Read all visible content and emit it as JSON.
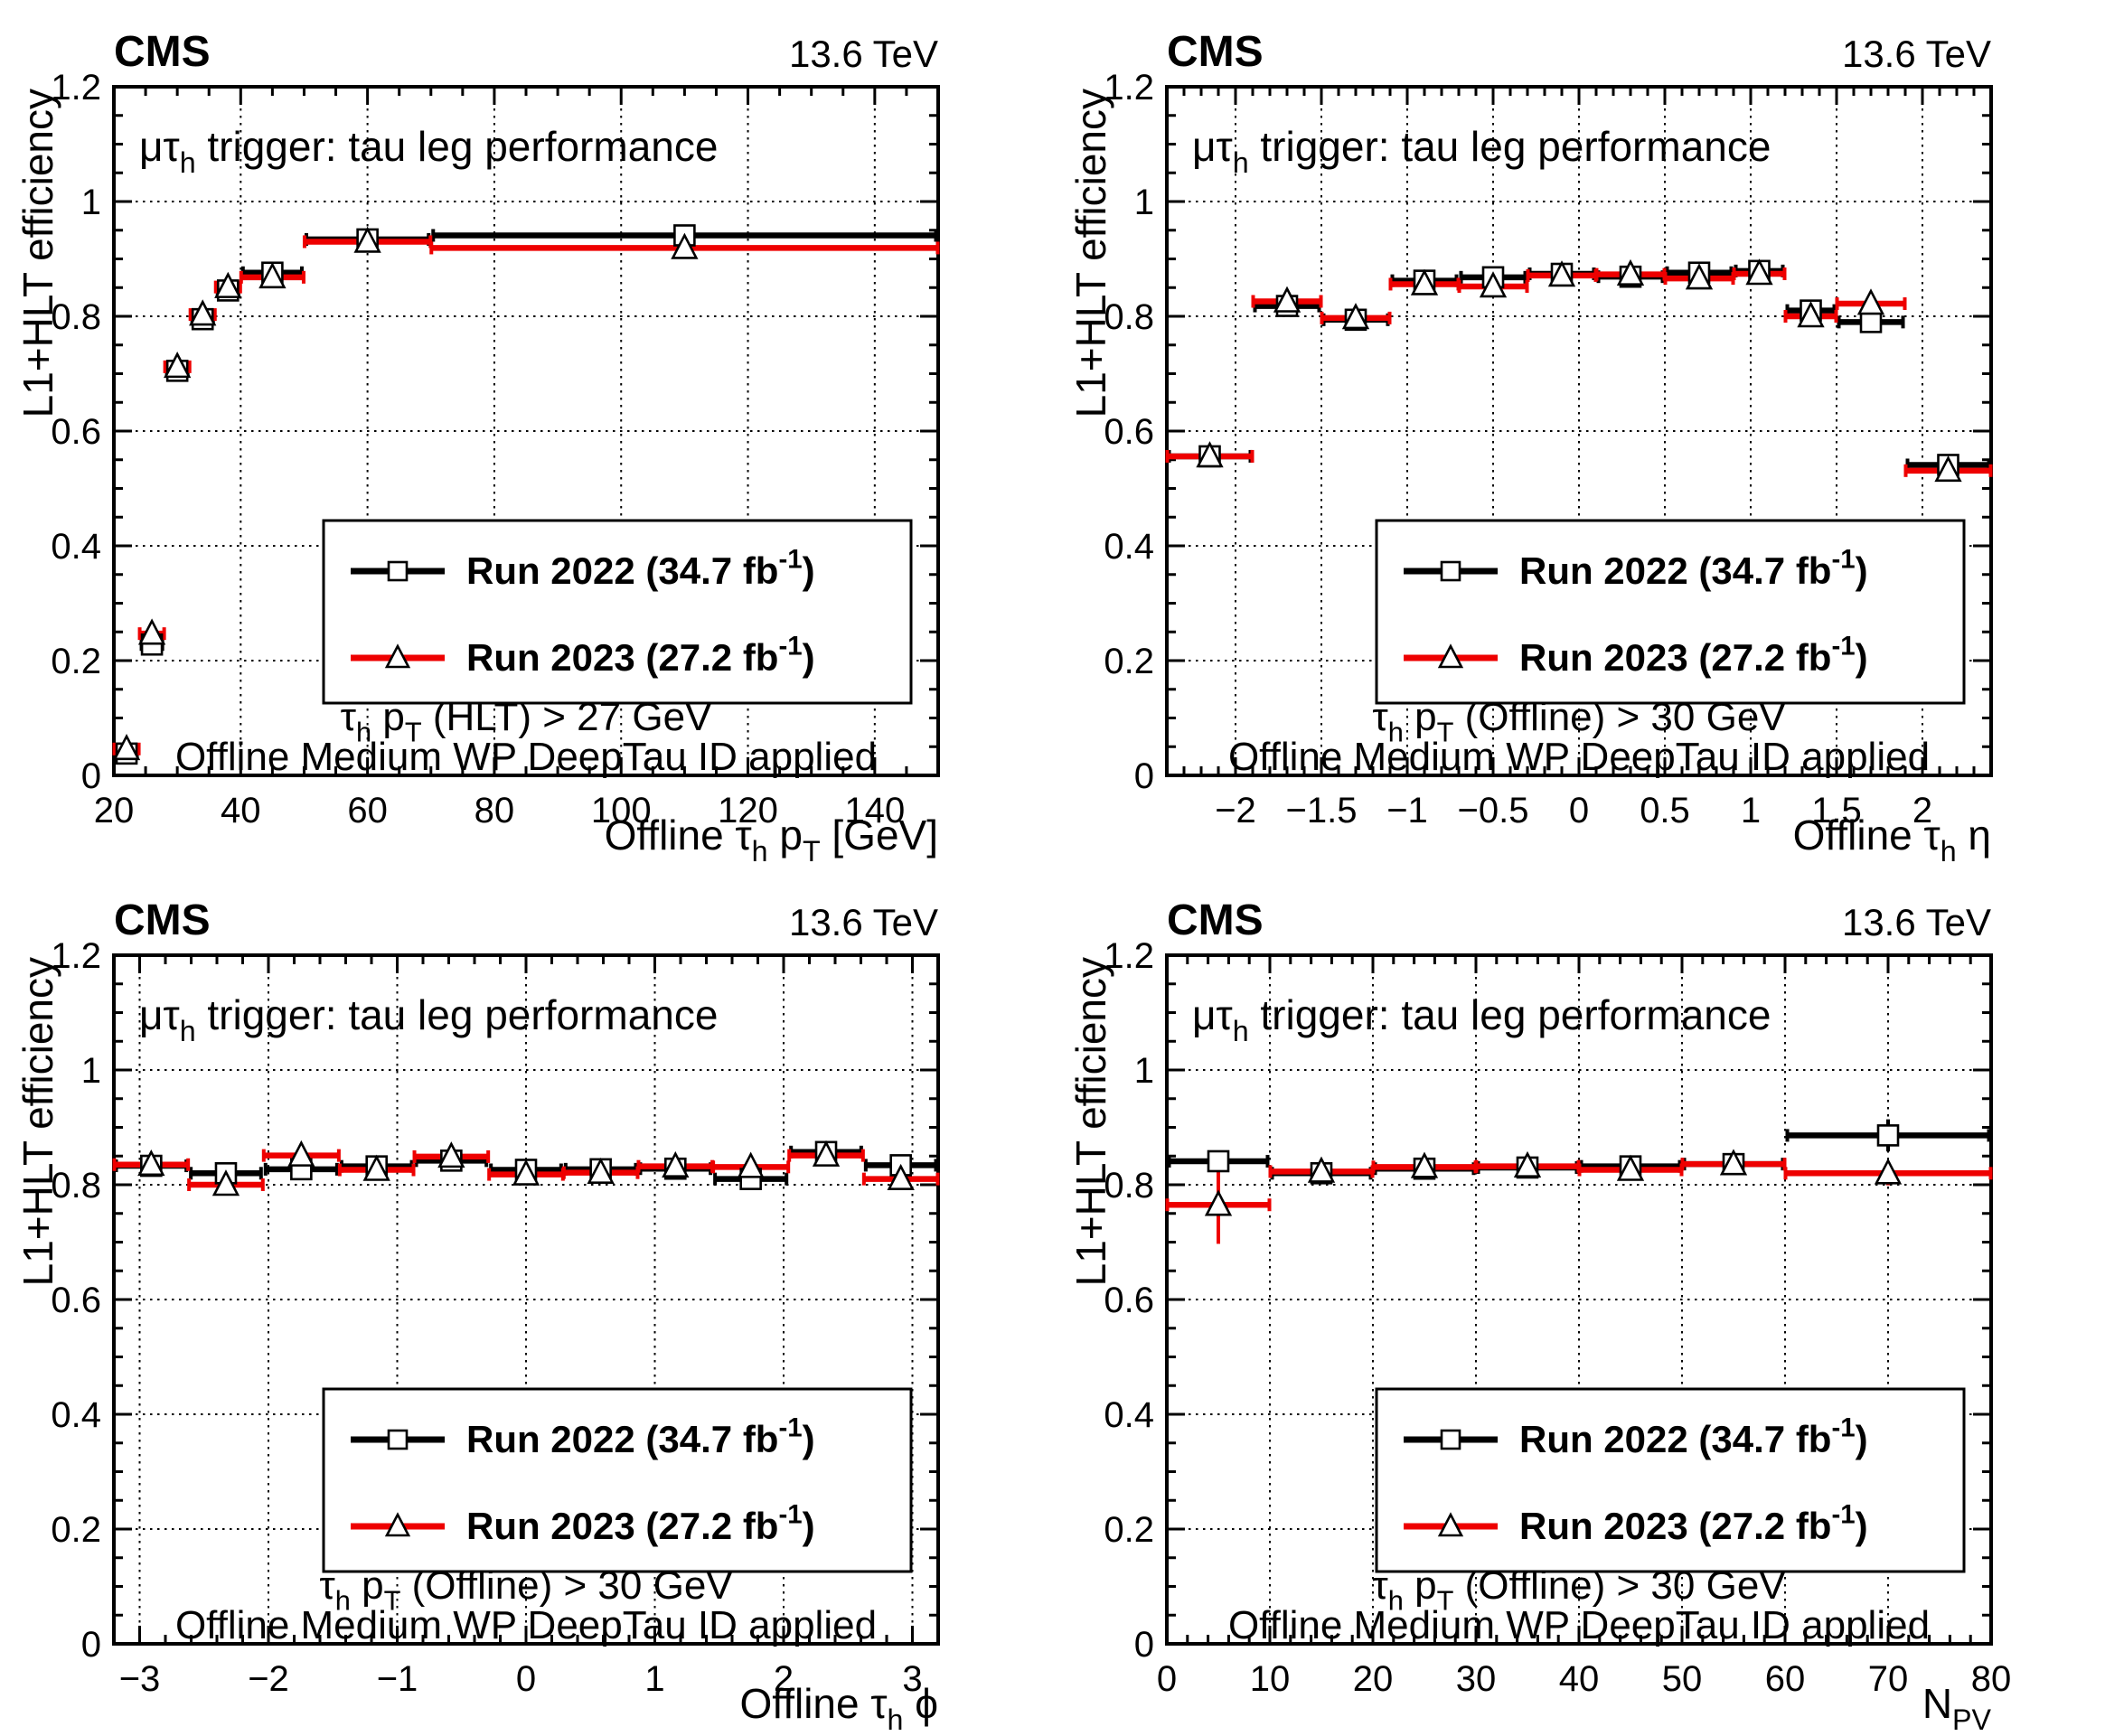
{
  "branding": {
    "experiment": "CMS",
    "energy": "13.6 TeV"
  },
  "common_text": {
    "plot_title_text": "μτh trigger: tau leg performance",
    "plot_title_segments": [
      {
        "t": "μτ"
      },
      {
        "t": "h",
        "sub": true
      },
      {
        "t": " trigger: tau leg performance"
      }
    ],
    "condition2": "Offline Medium WP DeepTau ID applied",
    "ylabel": "L1+HLT efficiency",
    "ylabel_segments": [
      {
        "t": "L1+HLT efficiency"
      }
    ]
  },
  "legend": {
    "entries": [
      {
        "name": "run2022",
        "color": "#000000",
        "marker": "square",
        "label_text": "Run 2022 (34.7 fb⁻¹)",
        "label_segments": [
          {
            "t": "Run 2022 (34.7 fb"
          },
          {
            "t": "-1",
            "sup": true
          },
          {
            "t": ")"
          }
        ]
      },
      {
        "name": "run2023",
        "color": "#ee0000",
        "marker": "triangle",
        "label_text": "Run 2023 (27.2 fb⁻¹)",
        "label_segments": [
          {
            "t": "Run 2023 (27.2 fb"
          },
          {
            "t": "-1",
            "sup": true
          },
          {
            "t": ")"
          }
        ]
      }
    ]
  },
  "chart_data": [
    {
      "id": "pt",
      "type": "errorbar",
      "title": "μτh trigger: tau leg performance",
      "xlabel_text": "Offline τh pT [GeV]",
      "xlabel_segments": [
        {
          "t": "Offline τ"
        },
        {
          "t": "h",
          "sub": true
        },
        {
          "t": " p"
        },
        {
          "t": "T",
          "sub": true
        },
        {
          "t": " [GeV]"
        }
      ],
      "condition1_text": "τh pT (HLT) > 27 GeV",
      "condition1_segments": [
        {
          "t": "τ"
        },
        {
          "t": "h",
          "sub": true
        },
        {
          "t": " p"
        },
        {
          "t": "T",
          "sub": true
        },
        {
          "t": " (HLT) > 27 GeV"
        }
      ],
      "xlim": [
        20,
        150
      ],
      "ylim": [
        0,
        1.2
      ],
      "xticks": [
        20,
        40,
        60,
        80,
        100,
        120,
        140
      ],
      "x_minor_step": 5,
      "yticks": [
        0,
        0.2,
        0.4,
        0.6,
        0.8,
        1,
        1.2
      ],
      "y_minor_step": 0.05,
      "grid": true,
      "legend_position": "inside-lower-center",
      "bin_edges": [
        20,
        24,
        28,
        32,
        36,
        40,
        50,
        70,
        150
      ],
      "series": [
        {
          "name": "Run 2022 (34.7 fb-1)",
          "color": "#000000",
          "marker": "square",
          "values": [
            0.038,
            0.228,
            0.705,
            0.795,
            0.845,
            0.876,
            0.934,
            0.941
          ],
          "yerr": [
            0.012,
            0.012,
            0.008,
            0.006,
            0.005,
            0.004,
            0.003,
            0.004
          ]
        },
        {
          "name": "Run 2023 (27.2 fb-1)",
          "color": "#ee0000",
          "marker": "triangle",
          "values": [
            0.046,
            0.247,
            0.712,
            0.803,
            0.851,
            0.868,
            0.93,
            0.919
          ],
          "yerr": [
            0.013,
            0.014,
            0.009,
            0.007,
            0.006,
            0.005,
            0.003,
            0.005
          ]
        }
      ]
    },
    {
      "id": "eta",
      "type": "errorbar",
      "title": "μτh trigger: tau leg performance",
      "xlabel_text": "Offline τh η",
      "xlabel_segments": [
        {
          "t": "Offline τ"
        },
        {
          "t": "h",
          "sub": true
        },
        {
          "t": " η"
        }
      ],
      "condition1_text": "τh pT (Offline) > 30 GeV",
      "condition1_segments": [
        {
          "t": "τ"
        },
        {
          "t": "h",
          "sub": true
        },
        {
          "t": " p"
        },
        {
          "t": "T",
          "sub": true
        },
        {
          "t": " (Offline) > 30 GeV"
        }
      ],
      "xlim": [
        -2.4,
        2.4
      ],
      "ylim": [
        0,
        1.2
      ],
      "xticks": [
        -2,
        -1.5,
        -1,
        -0.5,
        0,
        0.5,
        1,
        1.5,
        2
      ],
      "x_minor_step": 0.1,
      "yticks": [
        0,
        0.2,
        0.4,
        0.6,
        0.8,
        1,
        1.2
      ],
      "y_minor_step": 0.05,
      "grid": true,
      "legend_position": "inside-lower-center",
      "bin_edges": [
        -2.4,
        -1.9,
        -1.5,
        -1.1,
        -0.7,
        -0.3,
        0.1,
        0.5,
        0.9,
        1.2,
        1.5,
        1.9,
        2.4
      ],
      "series": [
        {
          "name": "Run 2022 (34.7 fb-1)",
          "color": "#000000",
          "marker": "square",
          "values": [
            0.556,
            0.818,
            0.794,
            0.862,
            0.868,
            0.874,
            0.869,
            0.876,
            0.879,
            0.81,
            0.79,
            0.541
          ],
          "yerr": [
            0.013,
            0.006,
            0.006,
            0.005,
            0.005,
            0.005,
            0.005,
            0.005,
            0.006,
            0.007,
            0.008,
            0.013
          ]
        },
        {
          "name": "Run 2023 (27.2 fb-1)",
          "color": "#ee0000",
          "marker": "triangle",
          "values": [
            0.556,
            0.826,
            0.797,
            0.856,
            0.852,
            0.871,
            0.873,
            0.866,
            0.874,
            0.8,
            0.822,
            0.531
          ],
          "yerr": [
            0.017,
            0.007,
            0.007,
            0.006,
            0.006,
            0.006,
            0.006,
            0.006,
            0.007,
            0.008,
            0.009,
            0.016
          ]
        }
      ]
    },
    {
      "id": "phi",
      "type": "errorbar",
      "title": "μτh trigger: tau leg performance",
      "xlabel_text": "Offline τh ϕ",
      "xlabel_segments": [
        {
          "t": "Offline τ"
        },
        {
          "t": "h",
          "sub": true
        },
        {
          "t": " ϕ"
        }
      ],
      "condition1_text": "τh pT (Offline) > 30 GeV",
      "condition1_segments": [
        {
          "t": "τ"
        },
        {
          "t": "h",
          "sub": true
        },
        {
          "t": " p"
        },
        {
          "t": "T",
          "sub": true
        },
        {
          "t": " (Offline) > 30 GeV"
        }
      ],
      "xlim": [
        -3.2,
        3.2
      ],
      "ylim": [
        0,
        1.2
      ],
      "xticks": [
        -3,
        -2,
        -1,
        0,
        1,
        2,
        3
      ],
      "x_minor_step": 0.2,
      "yticks": [
        0,
        0.2,
        0.4,
        0.6,
        0.8,
        1,
        1.2
      ],
      "y_minor_step": 0.05,
      "grid": true,
      "legend_position": "inside-lower-center",
      "bin_edges": [
        -3.2,
        -2.62,
        -2.04,
        -1.45,
        -0.87,
        -0.29,
        0.29,
        0.87,
        1.45,
        2.04,
        2.62,
        3.2
      ],
      "series": [
        {
          "name": "Run 2022 (34.7 fb-1)",
          "color": "#000000",
          "marker": "square",
          "values": [
            0.833,
            0.82,
            0.827,
            0.832,
            0.842,
            0.826,
            0.827,
            0.828,
            0.81,
            0.857,
            0.834
          ],
          "yerr": [
            0.008,
            0.008,
            0.01,
            0.008,
            0.008,
            0.008,
            0.008,
            0.008,
            0.008,
            0.008,
            0.008
          ]
        },
        {
          "name": "Run 2023 (27.2 fb-1)",
          "color": "#ee0000",
          "marker": "triangle",
          "values": [
            0.835,
            0.8,
            0.851,
            0.826,
            0.849,
            0.818,
            0.821,
            0.832,
            0.831,
            0.851,
            0.81
          ],
          "yerr": [
            0.009,
            0.009,
            0.011,
            0.009,
            0.009,
            0.009,
            0.009,
            0.009,
            0.009,
            0.009,
            0.009
          ]
        }
      ]
    },
    {
      "id": "npv",
      "type": "errorbar",
      "title": "μτh trigger: tau leg performance",
      "xlabel_text": "NPV",
      "xlabel_segments": [
        {
          "t": "N"
        },
        {
          "t": "PV",
          "sub": true
        }
      ],
      "condition1_text": "τh pT (Offline) > 30 GeV",
      "condition1_segments": [
        {
          "t": "τ"
        },
        {
          "t": "h",
          "sub": true
        },
        {
          "t": " p"
        },
        {
          "t": "T",
          "sub": true
        },
        {
          "t": " (Offline) > 30 GeV"
        }
      ],
      "xlim": [
        0,
        80
      ],
      "ylim": [
        0,
        1.2
      ],
      "xticks": [
        0,
        10,
        20,
        30,
        40,
        50,
        60,
        70,
        80
      ],
      "x_minor_step": 2,
      "yticks": [
        0,
        0.2,
        0.4,
        0.6,
        0.8,
        1,
        1.2
      ],
      "y_minor_step": 0.05,
      "grid": true,
      "legend_position": "inside-lower-center",
      "bin_edges": [
        0,
        10,
        20,
        30,
        40,
        50,
        60,
        80
      ],
      "series": [
        {
          "name": "Run 2022 (34.7 fb-1)",
          "color": "#000000",
          "marker": "square",
          "values": [
            0.841,
            0.82,
            0.828,
            0.83,
            0.832,
            0.836,
            0.886
          ],
          "yerr": [
            0.017,
            0.006,
            0.004,
            0.004,
            0.004,
            0.005,
            0.028
          ]
        },
        {
          "name": "Run 2023 (27.2 fb-1)",
          "color": "#ee0000",
          "marker": "triangle",
          "values": [
            0.765,
            0.823,
            0.831,
            0.832,
            0.826,
            0.836,
            0.82
          ],
          "yerr": [
            0.068,
            0.012,
            0.005,
            0.005,
            0.005,
            0.006,
            0.021
          ]
        }
      ]
    }
  ]
}
